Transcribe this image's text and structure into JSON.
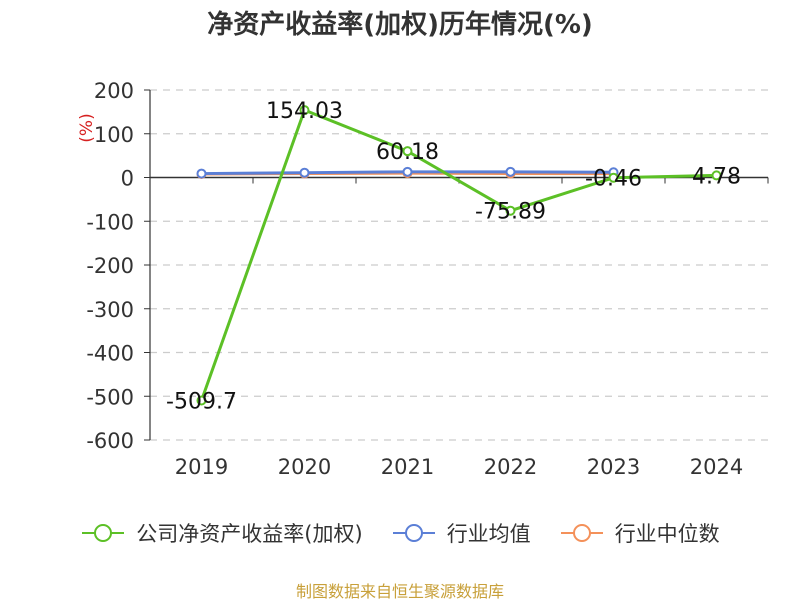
{
  "title": "净资产收益率(加权)历年情况(%)",
  "source": "制图数据来自恒生聚源数据库",
  "chart_data": {
    "type": "line",
    "title": "净资产收益率(加权)历年情况(%)",
    "ylabel": "(%)",
    "categories": [
      "2019",
      "2020",
      "2021",
      "2022",
      "2023",
      "2024"
    ],
    "ylim": [
      -600,
      200
    ],
    "yticks": [
      200,
      100,
      0,
      -100,
      -200,
      -300,
      -400,
      -500,
      -600
    ],
    "grid": true,
    "legend_position": "bottom",
    "series": [
      {
        "name": "公司净资产收益率(加权)",
        "color": "#5cc026",
        "values": [
          -509.7,
          154.03,
          60.18,
          -75.89,
          -0.46,
          4.78
        ],
        "labels": [
          "-509.7",
          "154.03",
          "60.18",
          "-75.89",
          "-0.46",
          "4.78"
        ]
      },
      {
        "name": "行业均值",
        "color": "#5b7fd6",
        "values": [
          9,
          11,
          13,
          13,
          12,
          null
        ]
      },
      {
        "name": "行业中位数",
        "color": "#f4915a",
        "values": [
          8,
          9,
          10,
          9,
          9,
          null
        ]
      }
    ]
  }
}
